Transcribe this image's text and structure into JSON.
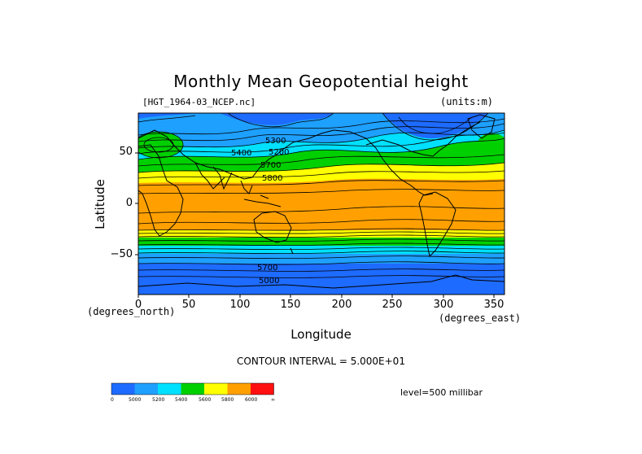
{
  "title": "Monthly Mean Geopotential height",
  "file_label": "[HGT_1964-03_NCEP.nc]",
  "units_label": "(units:m)",
  "y_axis": {
    "label": "Latitude",
    "unit_label": "(degrees_north)",
    "ticks": [
      "50",
      "0",
      "−50"
    ]
  },
  "x_axis": {
    "label": "Longitude",
    "unit_label": "(degrees_east)",
    "ticks": [
      "0",
      "50",
      "100",
      "150",
      "200",
      "250",
      "300",
      "350"
    ]
  },
  "contour_interval": "CONTOUR INTERVAL = 5.000E+01",
  "level": "level=500 millibar",
  "contour_labels": [
    "5300",
    "5200",
    "5400",
    "5700",
    "5800",
    "5700",
    "5000"
  ],
  "legend": {
    "colors": [
      "#1e6bff",
      "#1ea0ff",
      "#00e0ff",
      "#00d000",
      "#ffff00",
      "#ffa000",
      "#ff1010"
    ],
    "labels": [
      "0",
      "5000",
      "5200",
      "5400",
      "5600",
      "5800",
      "6000",
      "∞"
    ]
  },
  "chart_data": {
    "type": "heatmap",
    "variable": "geopotential height",
    "xlim": [
      0,
      360
    ],
    "ylim": [
      -90,
      90
    ],
    "bands_by_latitude": [
      {
        "lat": [
          -90,
          -65
        ],
        "value": "<5000"
      },
      {
        "lat": [
          -65,
          -55
        ],
        "value": "5000-5200"
      },
      {
        "lat": [
          -55,
          -48
        ],
        "value": "5200-5400"
      },
      {
        "lat": [
          -48,
          -38
        ],
        "value": "5400-5600"
      },
      {
        "lat": [
          -38,
          -30
        ],
        "value": "5600-5800"
      },
      {
        "lat": [
          -30,
          25
        ],
        "value": "5800-6000"
      },
      {
        "lat": [
          25,
          35
        ],
        "value": "5600-5800"
      },
      {
        "lat": [
          35,
          45
        ],
        "value": "5400-5600"
      },
      {
        "lat": [
          45,
          55
        ],
        "value": "5200-5400"
      },
      {
        "lat": [
          55,
          65
        ],
        "value": "5000-5200"
      },
      {
        "lat": [
          65,
          90
        ],
        "value": "<5000"
      }
    ]
  }
}
